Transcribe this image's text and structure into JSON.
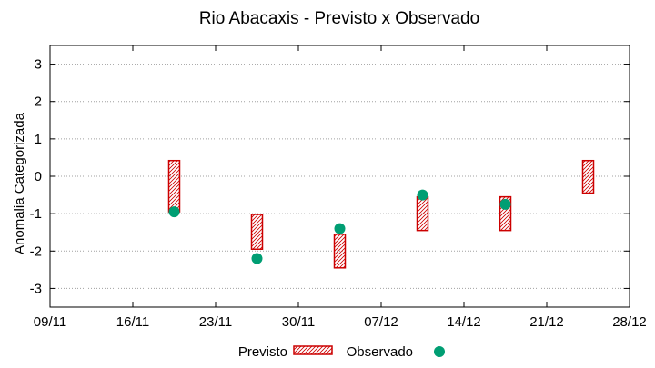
{
  "chart_data": {
    "type": "range-and-scatter",
    "title": "Rio Abacaxis - Previsto x Observado",
    "ylabel": "Anomalia Categorizada",
    "xlabel": "",
    "ylim": [
      -3.5,
      3.5
    ],
    "yticks": [
      -3,
      -2,
      -1,
      0,
      1,
      2,
      3
    ],
    "x_ticks": [
      "09/11",
      "16/11",
      "23/11",
      "30/11",
      "07/12",
      "14/12",
      "21/12",
      "28/12"
    ],
    "grid": "horizontal-dotted",
    "legend_position": "bottom",
    "series": [
      {
        "name": "Previsto",
        "kind": "range-box",
        "color": "#cc0000",
        "points": [
          {
            "x": 1.5,
            "low": -0.95,
            "high": 0.42
          },
          {
            "x": 2.5,
            "low": -1.95,
            "high": -1.02
          },
          {
            "x": 3.5,
            "low": -2.45,
            "high": -1.55
          },
          {
            "x": 4.5,
            "low": -1.45,
            "high": -0.55
          },
          {
            "x": 5.5,
            "low": -1.45,
            "high": -0.55
          },
          {
            "x": 6.5,
            "low": -0.45,
            "high": 0.42
          }
        ]
      },
      {
        "name": "Observado",
        "kind": "point",
        "color": "#009e73",
        "points": [
          {
            "x": 1.5,
            "y": -0.95
          },
          {
            "x": 2.5,
            "y": -2.2
          },
          {
            "x": 3.5,
            "y": -1.4
          },
          {
            "x": 4.5,
            "y": -0.5
          },
          {
            "x": 5.5,
            "y": -0.75
          }
        ]
      }
    ]
  }
}
